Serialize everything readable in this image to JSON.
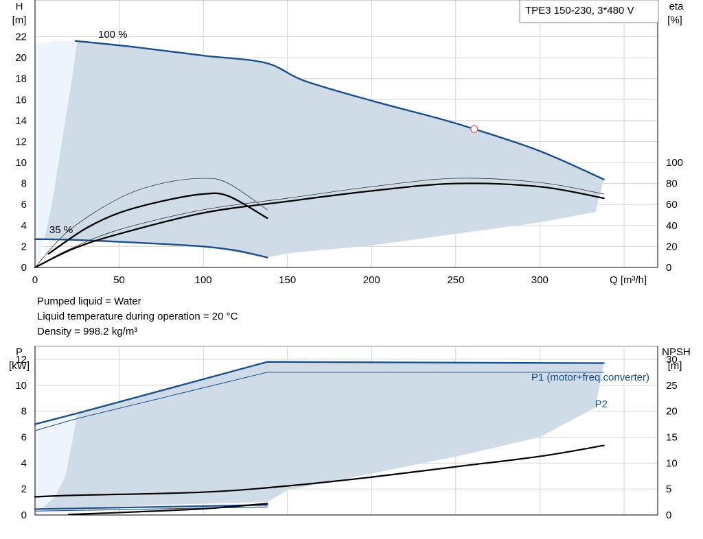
{
  "info_lines": [
    "Pumped liquid = Water",
    "Liquid temperature during operation = 20 °C",
    "Density = 998.2 kg/m³"
  ],
  "colors": {
    "curve_blue": "#1b4f8a",
    "area_fill": "#cfdbe6",
    "area_light": "#eef4fb",
    "grid": "#d4d4d4",
    "black": "#000000",
    "marker": "#e0585a"
  },
  "chart_data": [
    {
      "type": "line",
      "title": "TPE3 150-230, 3*480 V",
      "xlabel": "Q [m³/h]",
      "xlim": [
        0,
        370
      ],
      "xticks": [
        "0",
        "50",
        "100",
        "150",
        "200",
        "250",
        "300"
      ],
      "ylabel_left": [
        "H",
        "[m]"
      ],
      "ylabel_right": [
        "eta",
        "[%]"
      ],
      "ylim_left": [
        0,
        25.5
      ],
      "ylim_right": [
        0,
        255
      ],
      "yticks_left": [
        "0",
        "2",
        "4",
        "6",
        "8",
        "10",
        "12",
        "14",
        "16",
        "18",
        "20",
        "22"
      ],
      "yticks_right": [
        "0",
        "20",
        "40",
        "60",
        "80",
        "100"
      ],
      "grid": true,
      "curve_labels": [
        "100 %",
        "35 %"
      ],
      "operating_region": {
        "upper": [
          [
            0,
            21.2
          ],
          [
            10,
            21.55
          ],
          [
            24,
            21.6
          ],
          [
            60,
            21.0
          ],
          [
            100,
            20.2
          ],
          [
            137,
            19.5
          ],
          [
            160,
            17.8
          ],
          [
            200,
            15.9
          ],
          [
            240,
            14.2
          ],
          [
            261,
            13.2
          ],
          [
            300,
            11.1
          ],
          [
            338,
            8.4
          ]
        ],
        "lower": [
          [
            338,
            8.4
          ],
          [
            333,
            5.3
          ],
          [
            300,
            4.3
          ],
          [
            250,
            3.2
          ],
          [
            200,
            2.1
          ],
          [
            150,
            1.35
          ],
          [
            138,
            0.95
          ],
          [
            100,
            2.0
          ],
          [
            50,
            2.45
          ],
          [
            10,
            2.6
          ],
          [
            0,
            2.7
          ]
        ],
        "light_boundary": [
          [
            25,
            21.5
          ],
          [
            22,
            18
          ],
          [
            18,
            14
          ],
          [
            14,
            10
          ],
          [
            10,
            6
          ],
          [
            6,
            3
          ],
          [
            2,
            0.8
          ],
          [
            0,
            0
          ]
        ]
      },
      "series": [
        {
          "name": "100 %",
          "role": "head_max",
          "axis": "left",
          "x": [
            24,
            60,
            100,
            137,
            160,
            200,
            240,
            261,
            300,
            338
          ],
          "y": [
            21.6,
            21.0,
            20.2,
            19.5,
            17.8,
            15.9,
            14.2,
            13.2,
            11.1,
            8.4
          ]
        },
        {
          "name": "35 %",
          "role": "head_min",
          "axis": "left",
          "x": [
            0,
            20,
            50,
            80,
            100,
            120,
            138
          ],
          "y": [
            2.7,
            2.65,
            2.45,
            2.2,
            2.0,
            1.6,
            0.95
          ]
        },
        {
          "role": "eta_max_thin",
          "axis": "right",
          "x": [
            0,
            20,
            50,
            100,
            150,
            200,
            250,
            300,
            338
          ],
          "y": [
            0,
            17,
            36,
            55,
            66,
            77,
            85,
            81,
            70
          ]
        },
        {
          "role": "eta_max",
          "axis": "right",
          "x": [
            0,
            23,
            50,
            100,
            150,
            200,
            250,
            300,
            338
          ],
          "y": [
            0,
            18,
            32,
            52,
            63,
            73,
            80,
            77,
            66
          ]
        },
        {
          "role": "eta_min_thin",
          "axis": "right",
          "x": [
            0,
            20,
            50,
            75,
            100,
            115,
            138
          ],
          "y": [
            0,
            35,
            66,
            80,
            85,
            80,
            55
          ]
        },
        {
          "role": "eta_min",
          "axis": "right",
          "x": [
            8,
            30,
            50,
            75,
            100,
            115,
            138
          ],
          "y": [
            13,
            37,
            52,
            63,
            70,
            68,
            47
          ]
        }
      ],
      "duty_point": {
        "x": 261,
        "y": 13.2
      }
    },
    {
      "type": "line",
      "xlim": [
        0,
        370
      ],
      "ylabel_left": [
        "P",
        "[kW]"
      ],
      "ylabel_right": [
        "NPSH",
        "[m]"
      ],
      "ylim_left": [
        0,
        13
      ],
      "ylim_right": [
        0,
        32.5
      ],
      "yticks_left": [
        "0",
        "2",
        "4",
        "6",
        "8",
        "10",
        "12"
      ],
      "yticks_right": [
        "0",
        "5",
        "10",
        "15",
        "20",
        "25",
        "30"
      ],
      "grid": true,
      "legend": [
        "P1 (motor+freq.converter)",
        "P2"
      ],
      "operating_region": {
        "upper": [
          [
            0,
            7.0
          ],
          [
            10,
            7.4
          ],
          [
            24,
            7.8
          ],
          [
            138,
            11.8
          ],
          [
            338,
            11.7
          ]
        ],
        "lower": [
          [
            338,
            11.7
          ],
          [
            333,
            8.3
          ],
          [
            300,
            6.0
          ],
          [
            250,
            4.5
          ],
          [
            200,
            3.2
          ],
          [
            150,
            1.9
          ],
          [
            138,
            1.0
          ],
          [
            80,
            0.8
          ],
          [
            20,
            0.5
          ],
          [
            0,
            0.4
          ]
        ],
        "light_boundary": [
          [
            25,
            7.8
          ],
          [
            22,
            5.5
          ],
          [
            18,
            3.0
          ],
          [
            12,
            1.4
          ],
          [
            5,
            0.6
          ],
          [
            0,
            0.4
          ]
        ]
      },
      "series": [
        {
          "name": "P1 (motor+freq.converter)",
          "axis": "left",
          "x": [
            0,
            24,
            138,
            338
          ],
          "y": [
            7.0,
            7.8,
            11.8,
            11.7
          ]
        },
        {
          "name": "P2",
          "axis": "left",
          "x": [
            0,
            24,
            138,
            338
          ],
          "y": [
            6.5,
            7.4,
            11.0,
            11.0
          ]
        },
        {
          "role": "p1_min",
          "axis": "left",
          "x": [
            0,
            138
          ],
          "y": [
            0.45,
            0.78
          ]
        },
        {
          "role": "p2_min",
          "axis": "left",
          "x": [
            0,
            138
          ],
          "y": [
            0.3,
            0.62
          ]
        },
        {
          "role": "npsh_max",
          "axis": "right",
          "x": [
            0,
            24,
            100,
            150,
            200,
            250,
            300,
            338
          ],
          "y": [
            3.5,
            3.8,
            4.4,
            5.6,
            7.3,
            9.3,
            11.3,
            13.4
          ]
        },
        {
          "role": "npsh_min",
          "axis": "right",
          "x": [
            20,
            60,
            100,
            138
          ],
          "y": [
            0.1,
            0.6,
            1.2,
            2.2
          ]
        }
      ]
    }
  ]
}
